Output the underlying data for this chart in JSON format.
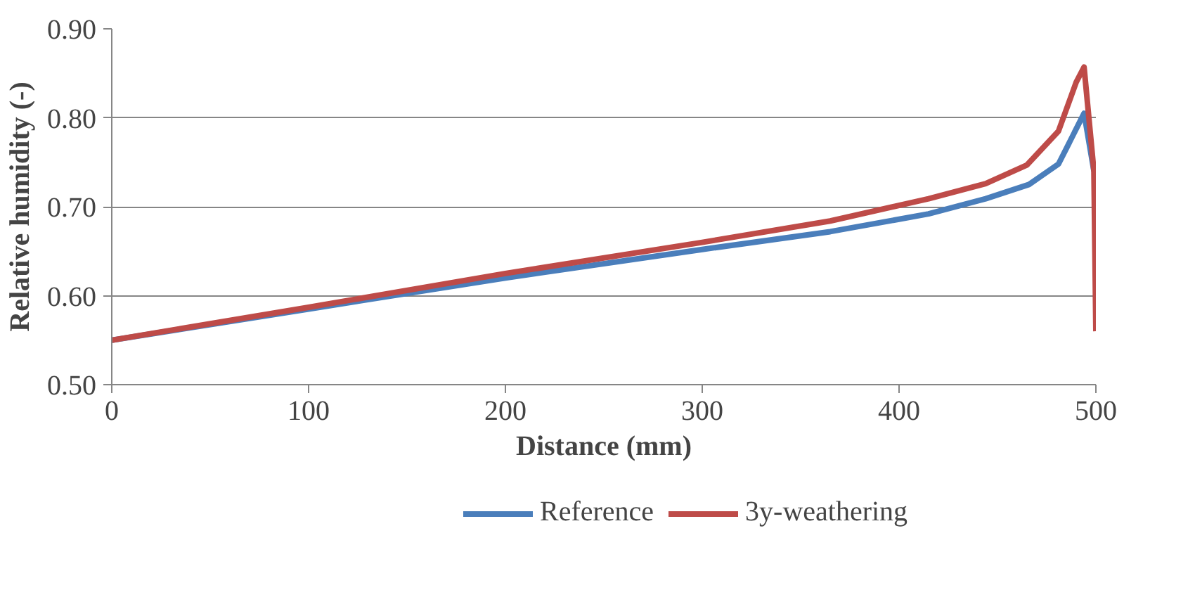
{
  "chart_data": {
    "type": "line",
    "xlabel": "Distance (mm)",
    "ylabel": "Relative humidity (-)",
    "xlim": [
      0,
      500
    ],
    "xticks": [
      0,
      100,
      200,
      300,
      400,
      500
    ],
    "ylim": [
      0.5,
      0.9
    ],
    "yticks": [
      {
        "value": 0.5,
        "label": "0.50"
      },
      {
        "value": 0.6,
        "label": "0.60"
      },
      {
        "value": 0.7,
        "label": "0.70"
      },
      {
        "value": 0.8,
        "label": "0.80"
      },
      {
        "value": 0.9,
        "label": "0.90"
      }
    ],
    "grid": "y",
    "legend": "bottom",
    "line_style": "solid",
    "marker": "none",
    "series": [
      {
        "name": "Reference",
        "color": "#4a7ebb",
        "x": [
          0,
          100,
          200,
          300,
          365,
          415,
          444,
          466,
          481,
          494,
          499
        ],
        "values": [
          0.55,
          0.585,
          0.62,
          0.652,
          0.672,
          0.692,
          0.709,
          0.725,
          0.748,
          0.805,
          0.74
        ]
      },
      {
        "name": "3y-weathering",
        "color": "#be4b48",
        "x": [
          0,
          100,
          200,
          300,
          365,
          415,
          444,
          465,
          481,
          490,
          494,
          499,
          500
        ],
        "values": [
          0.55,
          0.587,
          0.625,
          0.66,
          0.684,
          0.709,
          0.726,
          0.747,
          0.785,
          0.84,
          0.857,
          0.74,
          0.56
        ]
      }
    ]
  }
}
